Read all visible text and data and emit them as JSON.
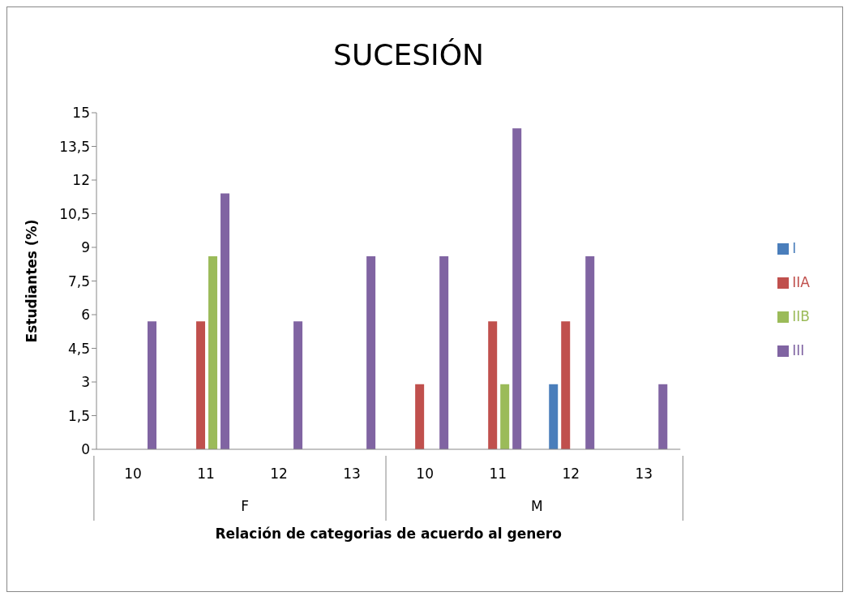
{
  "chart_data": {
    "type": "bar",
    "title": "SUCESIÓN",
    "xlabel": "Relación de categorias de acuerdo al genero",
    "ylabel": "Estudiantes (%)",
    "categories": [
      "10",
      "11",
      "12",
      "13",
      "10",
      "11",
      "12",
      "13"
    ],
    "annotations": [
      "F",
      "M"
    ],
    "series": [
      {
        "name": "I",
        "color": "#4a7ebb",
        "values": [
          0,
          0,
          0,
          0,
          0,
          0,
          2.9,
          0
        ]
      },
      {
        "name": "IIA",
        "color": "#c0504d",
        "values": [
          0,
          5.7,
          0,
          0,
          2.9,
          5.7,
          5.7,
          0
        ]
      },
      {
        "name": "IIB",
        "color": "#9bbb59",
        "values": [
          0,
          8.6,
          0,
          0,
          0,
          2.9,
          0,
          0
        ]
      },
      {
        "name": "III",
        "color": "#8064a2",
        "values": [
          5.7,
          11.4,
          5.7,
          8.6,
          8.6,
          14.3,
          8.6,
          2.9
        ]
      }
    ],
    "ylim": [
      0,
      15
    ],
    "yticks": [
      0,
      {
        "value": 1.5,
        "label": "1,5"
      },
      3,
      {
        "value": 4.5,
        "label": "4,5"
      },
      6,
      {
        "value": 7.5,
        "label": "7,5"
      },
      9,
      {
        "value": 10.5,
        "label": "10,5"
      },
      12,
      {
        "value": 13.5,
        "label": "13,5"
      },
      15
    ],
    "grid": false,
    "legend": "right"
  }
}
